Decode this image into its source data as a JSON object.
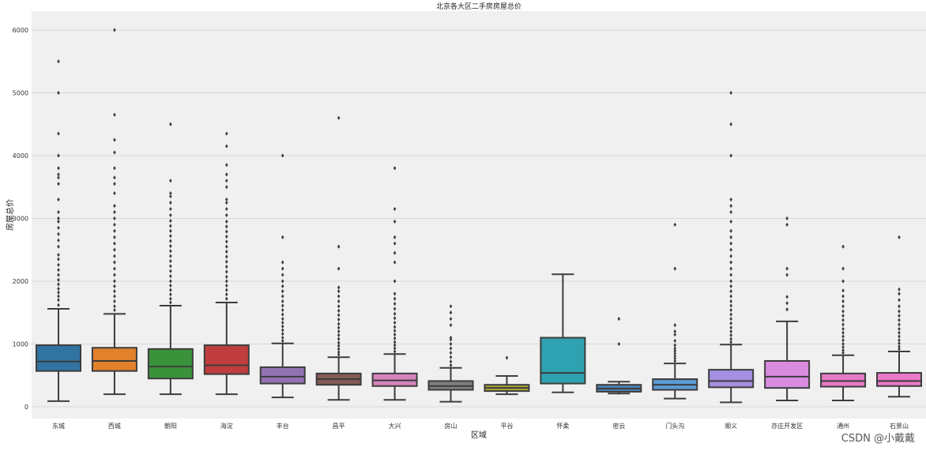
{
  "chart_data": {
    "type": "boxplot",
    "title": "北京各大区二手房房屋总价",
    "xlabel": "区域",
    "ylabel": "房屋总价",
    "ylim": [
      -100,
      6150
    ],
    "yticks": [
      0,
      1000,
      2000,
      3000,
      4000,
      5000,
      6000
    ],
    "grid": true,
    "categories": [
      "东城",
      "西城",
      "朝阳",
      "海淀",
      "丰台",
      "昌平",
      "大兴",
      "房山",
      "平谷",
      "怀柔",
      "密云",
      "门头沟",
      "顺义",
      "亦庄开发区",
      "通州",
      "石景山"
    ],
    "colors": [
      "#3274a1",
      "#e1812c",
      "#3a923a",
      "#c03d3e",
      "#9372b2",
      "#845b53",
      "#d684bd",
      "#7f7f7f",
      "#a9aa35",
      "#2ea2b1",
      "#4b82b3",
      "#5b9bd5",
      "#a48fe0",
      "#d98be0",
      "#e67ac4",
      "#ea79c9"
    ],
    "boxes": [
      {
        "name": "东城",
        "whisker_low": 90,
        "q1": 570,
        "median": 720,
        "q3": 980,
        "whisker_high": 1560,
        "outliers": [
          1620,
          1700,
          1760,
          1820,
          1880,
          1950,
          2020,
          2100,
          2180,
          2260,
          2350,
          2420,
          2550,
          2650,
          2750,
          2850,
          2950,
          3000,
          3100,
          3300,
          3550,
          3650,
          3700,
          3800,
          4000,
          4350,
          5000,
          5500
        ]
      },
      {
        "name": "西城",
        "whisker_low": 200,
        "q1": 570,
        "median": 730,
        "q3": 940,
        "whisker_high": 1480,
        "outliers": [
          1540,
          1600,
          1680,
          1760,
          1840,
          1920,
          2000,
          2100,
          2200,
          2300,
          2400,
          2500,
          2600,
          2700,
          2800,
          2900,
          3000,
          3100,
          3200,
          3400,
          3550,
          3650,
          3800,
          4050,
          4250,
          4650,
          6000
        ]
      },
      {
        "name": "朝阳",
        "whisker_low": 200,
        "q1": 450,
        "median": 640,
        "q3": 920,
        "whisker_high": 1610,
        "outliers": [
          1660,
          1720,
          1790,
          1860,
          1930,
          2000,
          2080,
          2160,
          2240,
          2320,
          2400,
          2480,
          2560,
          2640,
          2720,
          2800,
          2880,
          2960,
          3050,
          3150,
          3250,
          3350,
          3400,
          3600,
          4500
        ]
      },
      {
        "name": "海淀",
        "whisker_low": 200,
        "q1": 520,
        "median": 660,
        "q3": 980,
        "whisker_high": 1660,
        "outliers": [
          1720,
          1790,
          1860,
          1930,
          2000,
          2070,
          2150,
          2230,
          2310,
          2390,
          2470,
          2550,
          2630,
          2710,
          2790,
          2870,
          2950,
          3050,
          3150,
          3250,
          3300,
          3500,
          3600,
          3700,
          3850,
          4150,
          4350
        ]
      },
      {
        "name": "丰台",
        "whisker_low": 150,
        "q1": 370,
        "median": 480,
        "q3": 630,
        "whisker_high": 1010,
        "outliers": [
          1050,
          1100,
          1160,
          1220,
          1280,
          1340,
          1400,
          1470,
          1540,
          1610,
          1680,
          1760,
          1840,
          1920,
          2000,
          2100,
          2200,
          2300,
          2700,
          4000
        ]
      },
      {
        "name": "昌平",
        "whisker_low": 110,
        "q1": 350,
        "median": 440,
        "q3": 530,
        "whisker_high": 790,
        "outliers": [
          830,
          870,
          920,
          970,
          1020,
          1080,
          1140,
          1200,
          1260,
          1320,
          1390,
          1460,
          1530,
          1600,
          1680,
          1760,
          1840,
          1900,
          2200,
          2550,
          4600
        ]
      },
      {
        "name": "大兴",
        "whisker_low": 110,
        "q1": 330,
        "median": 420,
        "q3": 530,
        "whisker_high": 840,
        "outliers": [
          880,
          930,
          980,
          1030,
          1090,
          1150,
          1210,
          1270,
          1340,
          1410,
          1480,
          1560,
          1640,
          1720,
          1800,
          2000,
          2300,
          2450,
          2600,
          2700,
          2950,
          3150,
          3800
        ]
      },
      {
        "name": "房山",
        "whisker_low": 80,
        "q1": 270,
        "median": 330,
        "q3": 410,
        "whisker_high": 620,
        "outliers": [
          660,
          720,
          790,
          860,
          930,
          1000,
          1070,
          1100,
          1300,
          1400,
          1500,
          1600
        ]
      },
      {
        "name": "平谷",
        "whisker_low": 200,
        "q1": 250,
        "median": 300,
        "q3": 350,
        "whisker_high": 490,
        "outliers": [
          780
        ]
      },
      {
        "name": "怀柔",
        "whisker_low": 230,
        "q1": 370,
        "median": 540,
        "q3": 1100,
        "whisker_high": 2110,
        "outliers": []
      },
      {
        "name": "密云",
        "whisker_low": 210,
        "q1": 240,
        "median": 290,
        "q3": 350,
        "whisker_high": 400,
        "outliers": [
          1000,
          1400
        ]
      },
      {
        "name": "门头沟",
        "whisker_low": 130,
        "q1": 270,
        "median": 350,
        "q3": 440,
        "whisker_high": 690,
        "outliers": [
          730,
          770,
          810,
          850,
          890,
          930,
          980,
          1050,
          1150,
          1200,
          1300,
          2200,
          2900
        ]
      },
      {
        "name": "顺义",
        "whisker_low": 70,
        "q1": 310,
        "median": 410,
        "q3": 590,
        "whisker_high": 990,
        "outliers": [
          1030,
          1080,
          1140,
          1200,
          1260,
          1330,
          1400,
          1470,
          1540,
          1610,
          1680,
          1760,
          1840,
          1920,
          2000,
          2100,
          2200,
          2300,
          2400,
          2500,
          2600,
          2700,
          2800,
          2950,
          3100,
          3200,
          3300,
          4000,
          4500,
          5000
        ]
      },
      {
        "name": "亦庄开发区",
        "whisker_low": 100,
        "q1": 300,
        "median": 480,
        "q3": 730,
        "whisker_high": 1360,
        "outliers": [
          1550,
          1650,
          1750,
          2100,
          2200,
          2900,
          3000
        ]
      },
      {
        "name": "通州",
        "whisker_low": 100,
        "q1": 320,
        "median": 410,
        "q3": 530,
        "whisker_high": 820,
        "outliers": [
          860,
          900,
          950,
          1000,
          1060,
          1120,
          1180,
          1240,
          1310,
          1380,
          1450,
          1520,
          1600,
          1680,
          1760,
          1850,
          2000,
          2200,
          2550
        ]
      },
      {
        "name": "石景山",
        "whisker_low": 160,
        "q1": 330,
        "median": 410,
        "q3": 540,
        "whisker_high": 880,
        "outliers": [
          920,
          960,
          1010,
          1060,
          1120,
          1180,
          1240,
          1310,
          1380,
          1450,
          1520,
          1600,
          1700,
          1800,
          1870,
          2700
        ]
      }
    ]
  },
  "watermark": "CSDN @小戴戴"
}
